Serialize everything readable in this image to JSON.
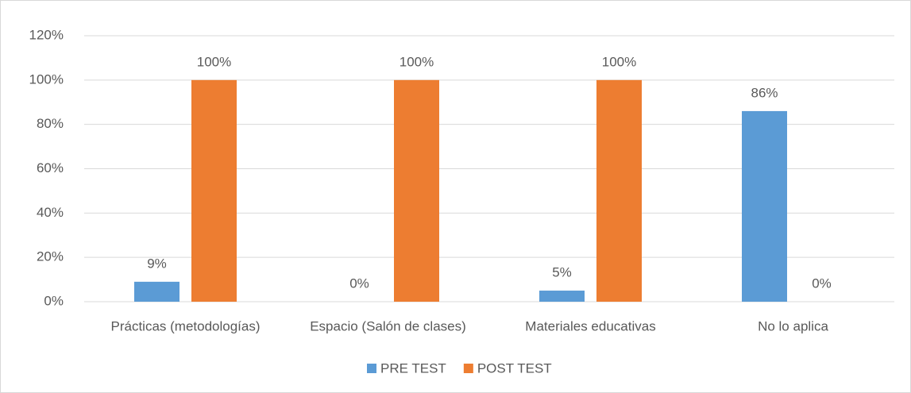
{
  "chart_data": {
    "type": "bar",
    "categories": [
      "Prácticas (metodologías)",
      "Espacio (Salón de clases)",
      "Materiales educativas",
      "No lo aplica"
    ],
    "series": [
      {
        "name": "PRE TEST",
        "color": "#5b9bd5",
        "values": [
          9,
          0,
          5,
          86
        ],
        "value_labels": [
          "9%",
          "0%",
          "5%",
          "86%"
        ]
      },
      {
        "name": "POST TEST",
        "color": "#ed7d31",
        "values": [
          100,
          100,
          100,
          0
        ],
        "value_labels": [
          "100%",
          "100%",
          "100%",
          "0%"
        ]
      }
    ],
    "ylim": [
      0,
      120
    ],
    "yticks": [
      {
        "value": 0,
        "label": "0%"
      },
      {
        "value": 20,
        "label": "20%"
      },
      {
        "value": 40,
        "label": "40%"
      },
      {
        "value": 60,
        "label": "60%"
      },
      {
        "value": 80,
        "label": "80%"
      },
      {
        "value": 100,
        "label": "100%"
      },
      {
        "value": 120,
        "label": "120%"
      }
    ],
    "grid": true,
    "legend": "bottom"
  }
}
